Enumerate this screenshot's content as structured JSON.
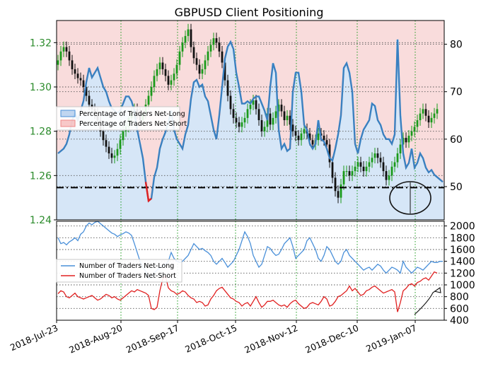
{
  "chart_data": [
    {
      "type": "line",
      "title": "GBPUSD Client Positioning",
      "x_ticks": [
        "2018-Jul-23",
        "2018-Aug-20",
        "2018-Sep-17",
        "2018-Oct-15",
        "2018-Nov-12",
        "2018-Dec-10",
        "2019-Jan-07"
      ],
      "left_axis": {
        "ticks": [
          "1.24",
          "1.26",
          "1.28",
          "1.30",
          "1.32"
        ],
        "ylim": [
          1.24,
          1.33
        ],
        "color": "#2a8a2a"
      },
      "right_axis": {
        "ticks": [
          "50",
          "60",
          "70",
          "80"
        ],
        "ylim": [
          43,
          85
        ]
      },
      "legend": {
        "placement": "center-left",
        "entries": [
          {
            "label": "Percentage of Traders Net-Long",
            "color": "#4a90d9"
          },
          {
            "label": "Percentage of Traders Net-Short",
            "color": "#f4a5a5"
          }
        ]
      },
      "reference_level": 49.8,
      "series": [
        {
          "legend_label": "Percentage of Traders Net-Long",
          "color": "#3a80c0",
          "values": [
            57,
            57.5,
            58,
            59,
            61,
            64,
            65.5,
            64,
            66,
            68,
            72,
            75,
            73,
            74,
            75,
            73,
            71,
            70,
            68,
            66.5,
            66,
            65.5,
            66,
            67.5,
            69,
            69,
            68,
            66,
            62,
            59,
            56,
            51,
            47,
            47.5,
            52,
            54,
            58,
            60,
            61.5,
            63.5,
            66,
            62,
            60,
            59,
            58,
            61,
            63,
            68.5,
            72,
            72.5,
            71,
            71.5,
            69,
            68,
            65,
            62,
            60,
            65,
            71,
            77,
            79.5,
            80.5,
            79,
            74,
            71,
            67.5,
            67.5,
            68,
            67.5,
            68.5,
            69,
            69,
            67.5,
            66,
            64,
            71,
            76,
            74,
            62,
            58,
            59,
            57.5,
            58,
            70,
            74,
            74,
            70,
            63,
            62,
            59,
            58,
            59,
            64,
            60,
            59.5,
            58,
            56,
            55.5,
            58,
            61,
            65,
            75,
            76,
            74,
            70,
            59,
            57,
            60,
            62,
            63,
            64,
            67.5,
            67,
            64,
            63,
            61,
            60,
            60,
            59,
            61,
            81,
            65,
            57,
            54,
            55,
            58,
            54,
            55,
            57,
            56,
            54,
            53,
            53.5,
            52.5,
            52,
            51.5,
            51
          ]
        }
      ],
      "price": {
        "legend_label": "GBPUSD",
        "color_up": "#1a9a1a",
        "color_down": "#111111",
        "values": [
          1.312,
          1.316,
          1.318,
          1.316,
          1.312,
          1.308,
          1.306,
          1.304,
          1.303,
          1.3,
          1.296,
          1.292,
          1.29,
          1.288,
          1.285,
          1.28,
          1.276,
          1.273,
          1.27,
          1.268,
          1.269,
          1.272,
          1.276,
          1.28,
          1.282,
          1.286,
          1.288,
          1.29,
          1.288,
          1.285,
          1.288,
          1.292,
          1.296,
          1.3,
          1.305,
          1.308,
          1.311,
          1.308,
          1.305,
          1.301,
          1.303,
          1.306,
          1.31,
          1.316,
          1.32,
          1.323,
          1.326,
          1.318,
          1.313,
          1.31,
          1.306,
          1.308,
          1.312,
          1.316,
          1.319,
          1.322,
          1.32,
          1.316,
          1.311,
          1.303,
          1.296,
          1.29,
          1.286,
          1.284,
          1.282,
          1.284,
          1.286,
          1.29,
          1.292,
          1.294,
          1.29,
          1.285,
          1.28,
          1.282,
          1.288,
          1.283,
          1.286,
          1.289,
          1.292,
          1.289,
          1.285,
          1.287,
          1.283,
          1.28,
          1.278,
          1.276,
          1.279,
          1.281,
          1.279,
          1.276,
          1.274,
          1.276,
          1.279,
          1.278,
          1.276,
          1.274,
          1.266,
          1.259,
          1.253,
          1.25,
          1.256,
          1.262,
          1.262,
          1.26,
          1.262,
          1.264,
          1.266,
          1.264,
          1.262,
          1.264,
          1.266,
          1.268,
          1.27,
          1.268,
          1.266,
          1.262,
          1.258,
          1.26,
          1.264,
          1.266,
          1.27,
          1.274,
          1.277,
          1.275,
          1.278,
          1.28,
          1.282,
          1.285,
          1.288,
          1.29,
          1.287,
          1.284,
          1.286,
          1.288,
          1.29
        ]
      }
    },
    {
      "type": "line",
      "left_axis": {
        "ticks": []
      },
      "right_axis": {
        "ticks": [
          "400",
          "600",
          "800",
          "1000",
          "1200",
          "1400",
          "1600",
          "1800",
          "2000"
        ],
        "ylim": [
          400,
          2080
        ]
      },
      "legend": {
        "placement": "center-left",
        "entries": [
          {
            "label": "Number of Traders Net-Long",
            "color": "#4a90d9"
          },
          {
            "label": "Number of Traders Net-Short",
            "color": "#e02020"
          }
        ]
      },
      "series": [
        {
          "legend_label": "Number of Traders Net-Long",
          "color": "#4a90d9",
          "values": [
            1800,
            1700,
            1720,
            1680,
            1730,
            1760,
            1800,
            1750,
            1860,
            1900,
            2000,
            2050,
            2020,
            2060,
            2080,
            2040,
            2000,
            1960,
            1920,
            1880,
            1860,
            1820,
            1850,
            1870,
            1900,
            1880,
            1840,
            1700,
            1550,
            1400,
            1300,
            1230,
            1100,
            1120,
            1200,
            1250,
            1300,
            1320,
            1350,
            1400,
            1550,
            1450,
            1400,
            1380,
            1400,
            1450,
            1500,
            1600,
            1700,
            1650,
            1600,
            1620,
            1580,
            1550,
            1500,
            1400,
            1350,
            1400,
            1450,
            1380,
            1300,
            1350,
            1400,
            1500,
            1600,
            1750,
            1900,
            1820,
            1700,
            1500,
            1400,
            1300,
            1350,
            1500,
            1650,
            1620,
            1550,
            1500,
            1520,
            1600,
            1700,
            1750,
            1800,
            1650,
            1450,
            1500,
            1550,
            1600,
            1750,
            1800,
            1700,
            1600,
            1450,
            1400,
            1500,
            1650,
            1600,
            1500,
            1400,
            1350,
            1400,
            1550,
            1600,
            1500,
            1450,
            1400,
            1350,
            1300,
            1250,
            1280,
            1300,
            1250,
            1300,
            1350,
            1320,
            1250,
            1200,
            1250,
            1300,
            1280,
            1250,
            1200,
            1400,
            1300,
            1250,
            1200,
            1250,
            1300,
            1280,
            1250,
            1300,
            1350,
            1400,
            1380,
            1380,
            1400,
            1400
          ]
        },
        {
          "legend_label": "Number of Traders Net-Short",
          "color": "#e02020",
          "values": [
            850,
            900,
            880,
            800,
            780,
            820,
            860,
            800,
            780,
            760,
            780,
            800,
            820,
            780,
            740,
            760,
            800,
            840,
            820,
            780,
            800,
            760,
            740,
            780,
            820,
            860,
            900,
            880,
            920,
            900,
            880,
            860,
            820,
            600,
            580,
            620,
            900,
            1100,
            1150,
            950,
            900,
            880,
            840,
            860,
            900,
            880,
            820,
            780,
            760,
            700,
            720,
            700,
            640,
            660,
            760,
            820,
            900,
            940,
            960,
            900,
            840,
            780,
            760,
            720,
            700,
            640,
            680,
            700,
            640,
            720,
            800,
            700,
            620,
            660,
            720,
            720,
            740,
            700,
            660,
            640,
            660,
            620,
            680,
            720,
            740,
            680,
            640,
            600,
            620,
            680,
            700,
            680,
            660,
            720,
            800,
            760,
            640,
            660,
            720,
            800,
            820,
            860,
            900,
            980,
            900,
            940,
            880,
            820,
            840,
            900,
            920,
            960,
            980,
            940,
            900,
            860,
            880,
            900,
            920,
            880,
            540,
            700,
            900,
            940,
            1000,
            1020,
            980,
            1040,
            1060,
            1100,
            1120,
            1080,
            1150,
            1220,
            1200
          ]
        }
      ]
    }
  ],
  "colors": {
    "grid": "#1a9a1a",
    "net_long_fill": "#d6e6f7",
    "net_short_fill": "#f9dcdc",
    "ref_line": "#000000"
  }
}
